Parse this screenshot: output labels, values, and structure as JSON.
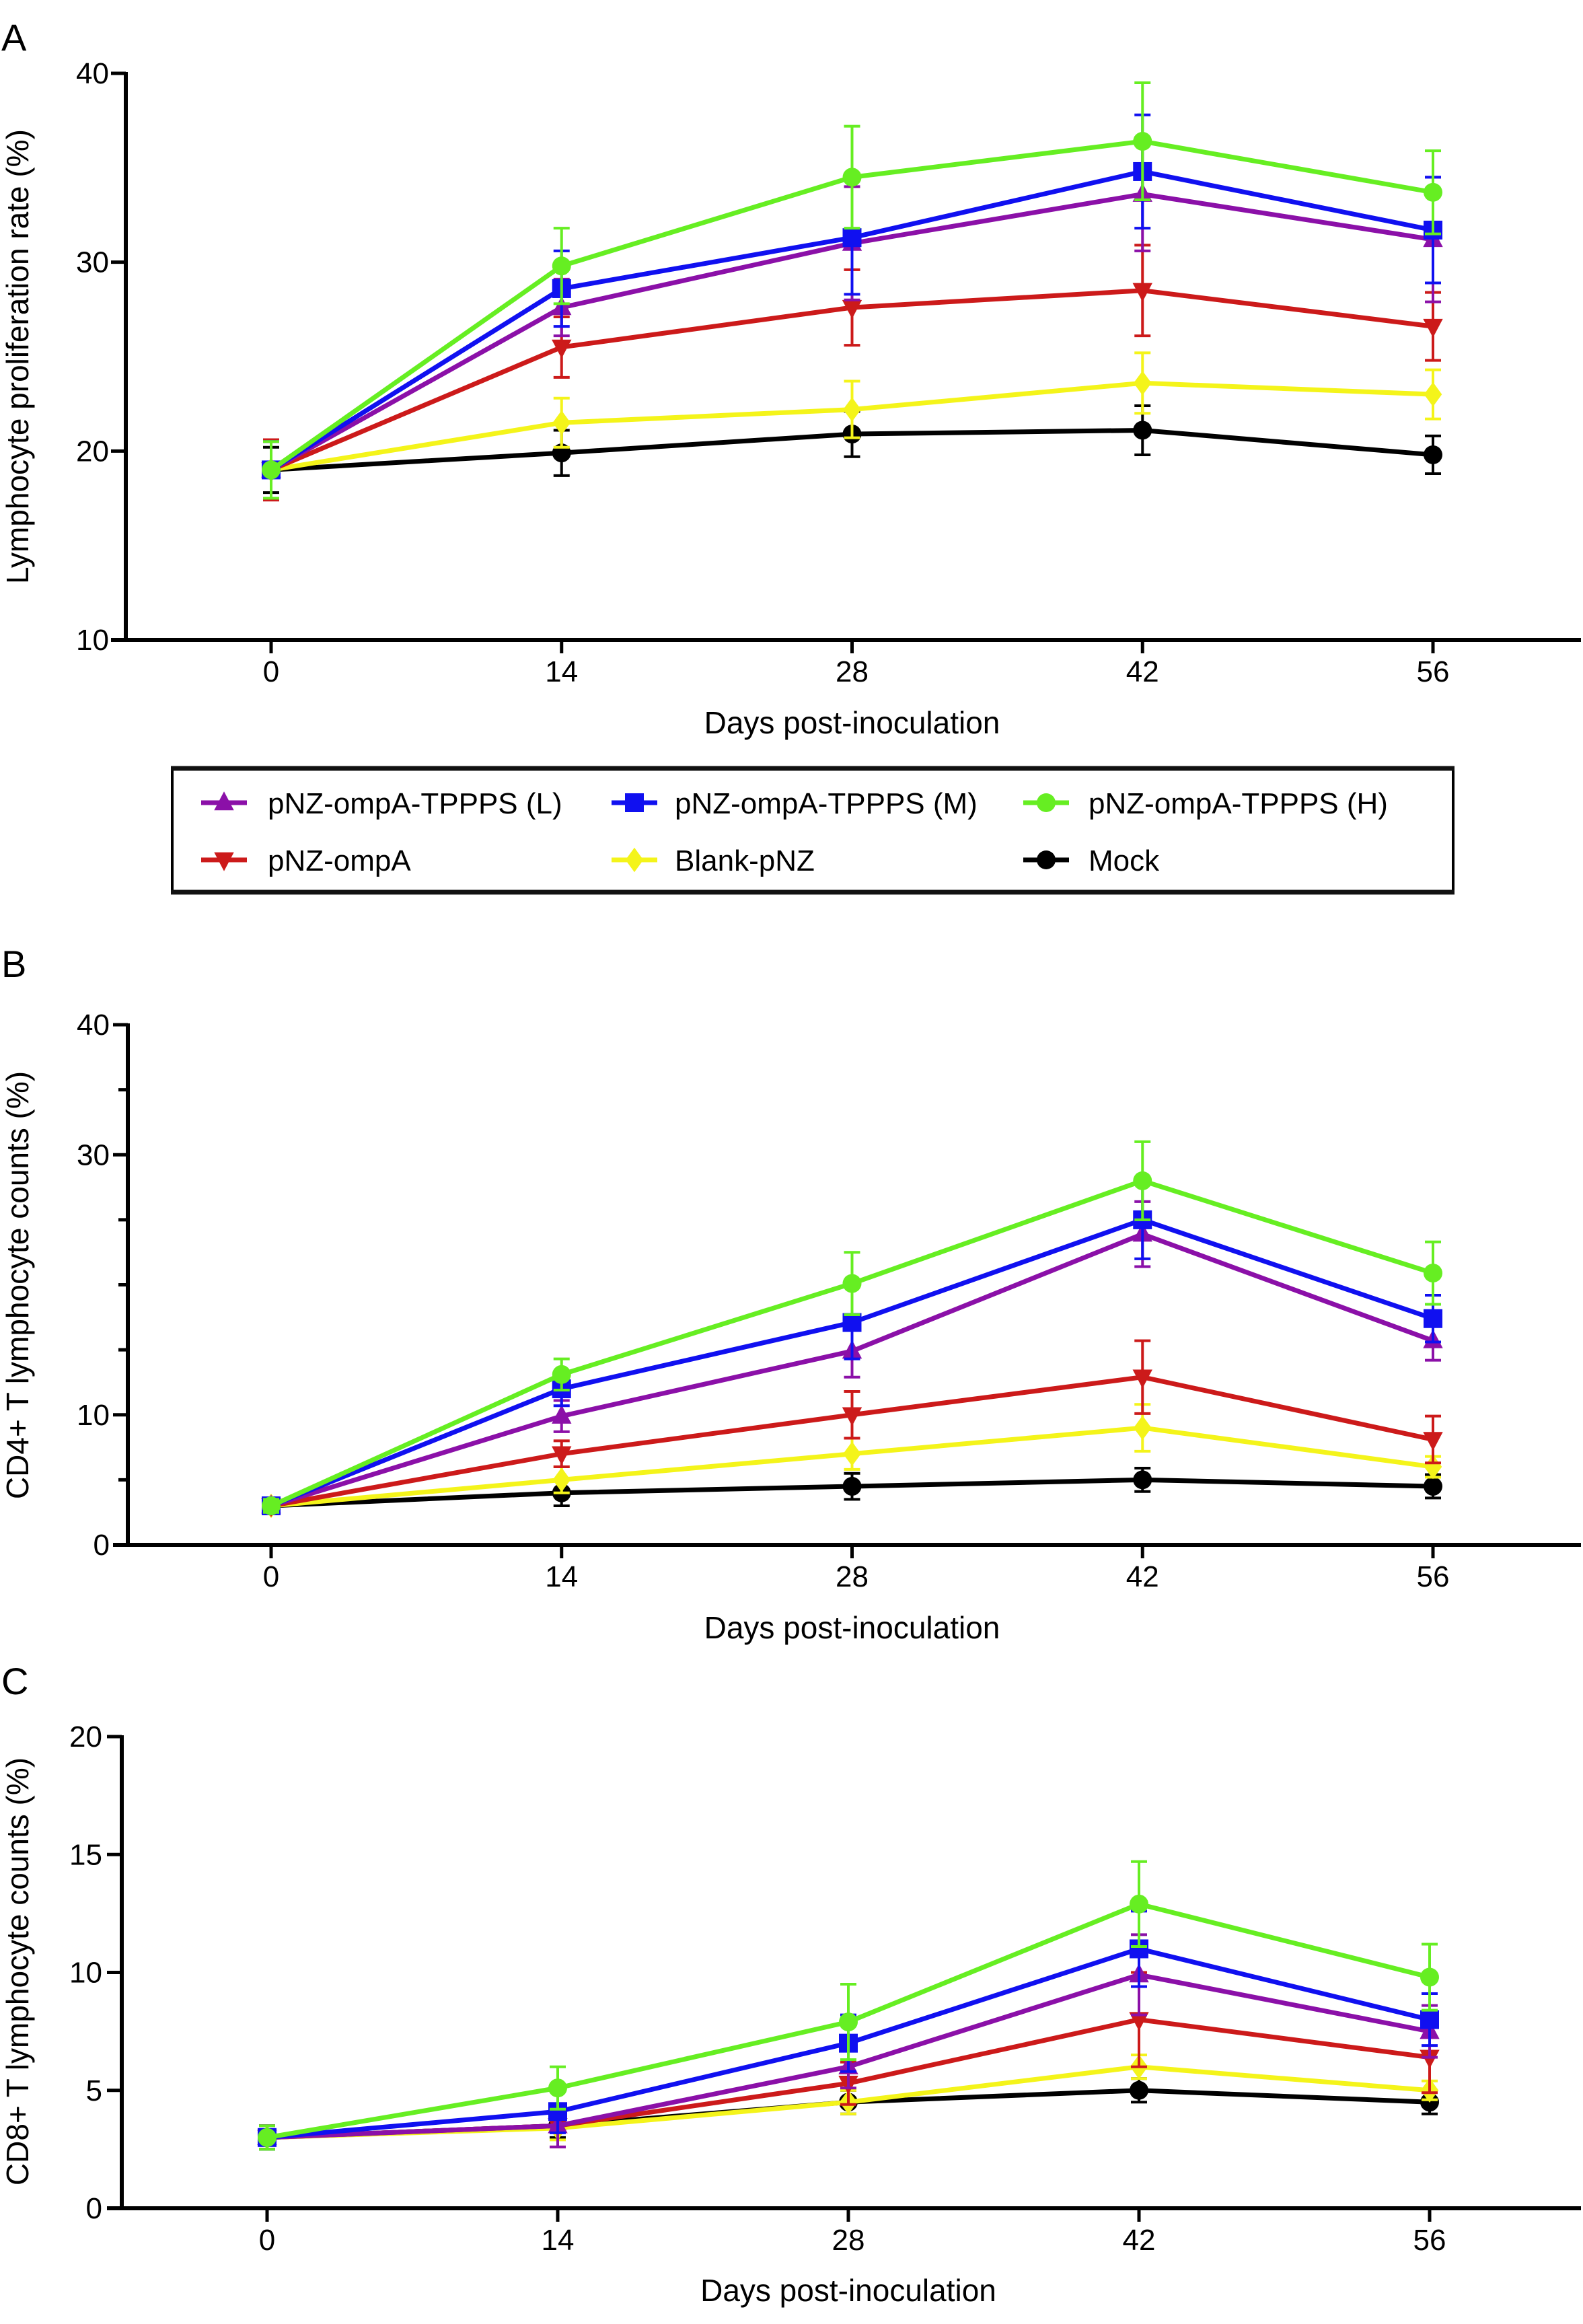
{
  "legend": {
    "items": [
      {
        "name": "pNZ-ompA-TPPPS (L)",
        "color": "#8B10A8",
        "marker": "triangle-up"
      },
      {
        "name": "pNZ-ompA-TPPPS (M)",
        "color": "#1010F0",
        "marker": "square"
      },
      {
        "name": "pNZ-ompA-TPPPS (H)",
        "color": "#66EE22",
        "marker": "circle"
      },
      {
        "name": "pNZ-ompA",
        "color": "#CC1A1A",
        "marker": "triangle-down"
      },
      {
        "name": "Blank-pNZ",
        "color": "#F4F41A",
        "marker": "diamond"
      },
      {
        "name": "Mock",
        "color": "#000000",
        "marker": "circle"
      }
    ]
  },
  "chart_data": [
    {
      "panel": "A",
      "type": "line",
      "title": "",
      "xlabel": "Days post-inoculation",
      "ylabel": "Lymphocyte proliferation rate (%)",
      "x": [
        0,
        14,
        28,
        42,
        56
      ],
      "xticks": [
        "0",
        "14",
        "28",
        "42",
        "56"
      ],
      "ylim": [
        10,
        40
      ],
      "yticks": [
        10,
        20,
        30,
        40
      ],
      "yticks_labeled": [
        10,
        20,
        30,
        40
      ],
      "grid": false,
      "legend": "below",
      "series": [
        {
          "name": "pNZ-ompA-TPPPS (L)",
          "values": [
            19.0,
            27.6,
            31.0,
            33.6,
            31.2
          ],
          "error": [
            1.5,
            1.5,
            3.0,
            3.0,
            3.3
          ]
        },
        {
          "name": "pNZ-ompA-TPPPS (M)",
          "values": [
            19.0,
            28.6,
            31.3,
            34.8,
            31.7
          ],
          "error": [
            1.5,
            2.0,
            3.0,
            3.0,
            2.8
          ]
        },
        {
          "name": "pNZ-ompA-TPPPS (H)",
          "values": [
            19.0,
            29.8,
            34.5,
            36.4,
            33.7
          ],
          "error": [
            1.5,
            2.0,
            2.7,
            3.1,
            2.2
          ]
        },
        {
          "name": "pNZ-ompA",
          "values": [
            19.0,
            25.5,
            27.6,
            28.5,
            26.6
          ],
          "error": [
            1.6,
            1.6,
            2.0,
            2.4,
            1.8
          ]
        },
        {
          "name": "Blank-pNZ",
          "values": [
            19.0,
            21.5,
            22.2,
            23.6,
            23.0
          ],
          "error": [
            1.5,
            1.3,
            1.5,
            1.6,
            1.3
          ]
        },
        {
          "name": "Mock",
          "values": [
            19.0,
            19.9,
            20.9,
            21.1,
            19.8
          ],
          "error": [
            1.2,
            1.2,
            1.2,
            1.3,
            1.0
          ]
        }
      ]
    },
    {
      "panel": "B",
      "type": "line",
      "title": "",
      "xlabel": "Days post-inoculation",
      "ylabel": "CD4+ T lymphocyte counts (%)",
      "x": [
        0,
        14,
        28,
        42,
        56
      ],
      "xticks": [
        "0",
        "14",
        "28",
        "42",
        "56"
      ],
      "ylim": [
        0,
        40
      ],
      "yticks": [
        0,
        5,
        10,
        15,
        20,
        25,
        30,
        35,
        40
      ],
      "yticks_labeled": [
        0,
        10,
        30,
        40
      ],
      "grid": false,
      "legend": "none",
      "series": [
        {
          "name": "pNZ-ompA-TPPPS (L)",
          "values": [
            3.0,
            9.9,
            14.9,
            23.9,
            15.7
          ],
          "error": [
            0.5,
            1.2,
            2.0,
            2.5,
            1.5
          ]
        },
        {
          "name": "pNZ-ompA-TPPPS (M)",
          "values": [
            3.0,
            12.0,
            17.1,
            25.0,
            17.4
          ],
          "error": [
            0.5,
            1.3,
            2.8,
            3.0,
            1.8
          ]
        },
        {
          "name": "pNZ-ompA-TPPPS (H)",
          "values": [
            3.0,
            13.1,
            20.1,
            28.0,
            20.9
          ],
          "error": [
            0.5,
            1.2,
            2.4,
            3.0,
            2.4
          ]
        },
        {
          "name": "pNZ-ompA",
          "values": [
            3.0,
            7.0,
            10.0,
            12.9,
            8.1
          ],
          "error": [
            0.4,
            1.0,
            1.8,
            2.8,
            1.8
          ]
        },
        {
          "name": "Blank-pNZ",
          "values": [
            3.0,
            5.0,
            7.0,
            9.0,
            6.0
          ],
          "error": [
            0.5,
            1.0,
            1.2,
            1.8,
            0.8
          ]
        },
        {
          "name": "Mock",
          "values": [
            3.0,
            4.0,
            4.5,
            5.0,
            4.5
          ],
          "error": [
            0.4,
            1.0,
            1.0,
            0.9,
            0.9
          ]
        }
      ]
    },
    {
      "panel": "C",
      "type": "line",
      "title": "",
      "xlabel": "Days post-inoculation",
      "ylabel": "CD8+ T lymphocyte counts (%)",
      "x": [
        0,
        14,
        28,
        42,
        56
      ],
      "xticks": [
        "0",
        "14",
        "28",
        "42",
        "56"
      ],
      "ylim": [
        0,
        20
      ],
      "yticks": [
        0,
        5,
        10,
        15,
        20
      ],
      "yticks_labeled": [
        0,
        5,
        10,
        15,
        20
      ],
      "grid": false,
      "legend": "none",
      "series": [
        {
          "name": "pNZ-ompA-TPPPS (L)",
          "values": [
            3.0,
            3.5,
            6.0,
            9.9,
            7.5
          ],
          "error": [
            0.5,
            0.9,
            0.9,
            1.7,
            1.1
          ]
        },
        {
          "name": "pNZ-ompA-TPPPS (M)",
          "values": [
            3.0,
            4.1,
            7.0,
            11.0,
            8.0
          ],
          "error": [
            0.5,
            0.9,
            1.2,
            1.6,
            1.1
          ]
        },
        {
          "name": "pNZ-ompA-TPPPS (H)",
          "values": [
            3.0,
            5.1,
            7.9,
            12.9,
            9.8
          ],
          "error": [
            0.5,
            0.9,
            1.6,
            1.8,
            1.4
          ]
        },
        {
          "name": "pNZ-ompA",
          "values": [
            3.0,
            3.5,
            5.3,
            8.0,
            6.4
          ],
          "error": [
            0.5,
            0.9,
            0.9,
            2.0,
            1.5
          ]
        },
        {
          "name": "Blank-pNZ",
          "values": [
            3.0,
            3.4,
            4.5,
            6.0,
            5.0
          ],
          "error": [
            0.5,
            0.5,
            0.5,
            0.5,
            0.4
          ]
        },
        {
          "name": "Mock",
          "values": [
            3.0,
            3.5,
            4.5,
            5.0,
            4.5
          ],
          "error": [
            0.5,
            0.5,
            0.5,
            0.5,
            0.5
          ]
        }
      ]
    }
  ]
}
